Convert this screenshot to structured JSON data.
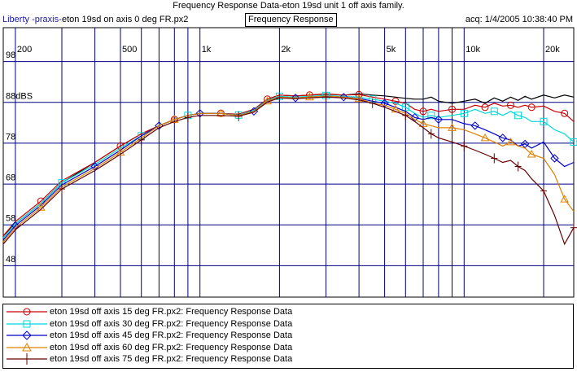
{
  "header": {
    "title": "Frequency Response Data-eton 19sd unit 1 off axis family.",
    "brand": "Liberty -praxis-",
    "subtitle": "eton 19sd on axis 0 deg FR.px2",
    "panel_title": "Frequency Response",
    "acquired": "acq: 1/4/2005 10:38:40 PM"
  },
  "colors": {
    "grid": "#000080",
    "legend_border": "#000000"
  },
  "chart_data": {
    "type": "line",
    "x_scale": "log",
    "xlim": [
      180,
      26000
    ],
    "ylim": [
      40,
      106
    ],
    "grid": true,
    "legend_placement": "bottom",
    "x_major_ticks": [
      {
        "value": 200,
        "label": "200"
      },
      {
        "value": 500,
        "label": "500"
      },
      {
        "value": 1000,
        "label": "1k"
      },
      {
        "value": 2000,
        "label": "2k"
      },
      {
        "value": 5000,
        "label": "5k"
      },
      {
        "value": 10000,
        "label": "10k"
      },
      {
        "value": 20000,
        "label": "20k"
      }
    ],
    "x_minor_ticks": [
      300,
      400,
      600,
      700,
      800,
      900,
      3000,
      4000,
      6000,
      7000,
      8000,
      9000
    ],
    "y_ticks": [
      {
        "value": 98,
        "label": "98"
      },
      {
        "value": 88,
        "label": "88dBS"
      },
      {
        "value": 78,
        "label": "78"
      },
      {
        "value": 68,
        "label": "68"
      },
      {
        "value": 58,
        "label": "58"
      },
      {
        "value": 48,
        "label": "48"
      }
    ],
    "series": [
      {
        "name": "eton 19sd on axis 0 deg FR.px2",
        "color": "#000000",
        "marker": "none",
        "x": [
          180,
          200,
          250,
          300,
          400,
          500,
          600,
          700,
          800,
          900,
          1000,
          1200,
          1400,
          1600,
          1800,
          2000,
          2300,
          2600,
          3000,
          3500,
          4000,
          4500,
          5000,
          5500,
          6000,
          6500,
          7000,
          7500,
          8000,
          9000,
          10000,
          11000,
          12000,
          13000,
          14000,
          15000,
          16000,
          17000,
          18000,
          20000,
          22000,
          24000,
          26000
        ],
        "y": [
          55,
          58,
          63,
          68,
          73,
          77,
          80,
          82,
          83.5,
          84.5,
          85,
          85,
          84.8,
          86,
          88.5,
          89.5,
          89.3,
          89.5,
          89.7,
          89.5,
          89.8,
          89.5,
          89.3,
          89,
          88.7,
          88.5,
          88.5,
          89,
          88,
          87.5,
          88,
          88.5,
          87.5,
          88.8,
          88,
          89,
          88.2,
          89.2,
          88.5,
          89.5,
          88.8,
          89.5,
          89
        ]
      },
      {
        "name": "eton 19sd off axis 15 deg FR.px2:  Frequency Response Data",
        "color": "#cc0000",
        "marker": "circle",
        "x": [
          180,
          200,
          250,
          300,
          400,
          500,
          600,
          700,
          800,
          900,
          1000,
          1200,
          1400,
          1600,
          1800,
          2000,
          2300,
          2600,
          3000,
          3500,
          4000,
          4500,
          5000,
          5500,
          6000,
          6500,
          7000,
          7500,
          8000,
          9000,
          10000,
          11000,
          12000,
          13000,
          14000,
          15000,
          16000,
          17000,
          18000,
          20000,
          22000,
          24000,
          26000
        ],
        "y": [
          55,
          58.5,
          63.5,
          68.5,
          73,
          77,
          80,
          82,
          83.5,
          84.5,
          85,
          85,
          84.8,
          86,
          88.5,
          89.5,
          89.3,
          89.5,
          89.8,
          89.5,
          89.6,
          89,
          88.5,
          88,
          87.5,
          86,
          85.5,
          86,
          85.5,
          86,
          86,
          87,
          86.5,
          87.5,
          86.8,
          87,
          86.5,
          87,
          86.5,
          86.8,
          85.5,
          85,
          83
        ]
      },
      {
        "name": "eton 19sd off axis 30 deg FR.px2:  Frequency Response Data",
        "color": "#00d8d8",
        "marker": "square",
        "x": [
          180,
          200,
          250,
          300,
          400,
          500,
          600,
          700,
          800,
          900,
          1000,
          1200,
          1400,
          1600,
          1800,
          2000,
          2300,
          2600,
          3000,
          3500,
          4000,
          4500,
          5000,
          5500,
          6000,
          6500,
          7000,
          7500,
          8000,
          9000,
          10000,
          11000,
          12000,
          13000,
          14000,
          15000,
          16000,
          17000,
          18000,
          20000,
          22000,
          24000,
          26000
        ],
        "y": [
          54.5,
          58,
          63,
          68,
          72.5,
          76.5,
          79.5,
          82,
          83.5,
          84.5,
          85,
          85,
          84.6,
          85.8,
          88.2,
          89.2,
          89,
          89.2,
          89.4,
          89.2,
          89,
          88.5,
          88,
          87.5,
          86.5,
          85,
          84,
          84.5,
          84,
          84.5,
          85,
          86,
          85,
          85.5,
          84.5,
          85.5,
          84.5,
          84,
          83,
          83,
          81,
          80,
          78
        ]
      },
      {
        "name": "eton 19sd off axis 45 deg FR.px2:  Frequency Response Data",
        "color": "#0000cc",
        "marker": "diamond",
        "x": [
          180,
          200,
          250,
          300,
          400,
          500,
          600,
          700,
          800,
          900,
          1000,
          1200,
          1400,
          1600,
          1800,
          2000,
          2300,
          2600,
          3000,
          3500,
          4000,
          4500,
          5000,
          5500,
          6000,
          6500,
          7000,
          7500,
          8000,
          9000,
          10000,
          11000,
          12000,
          13000,
          14000,
          15000,
          16000,
          17000,
          18000,
          20000,
          22000,
          24000,
          26000
        ],
        "y": [
          54,
          57.5,
          62.5,
          67.5,
          72,
          76,
          79.5,
          82,
          83.5,
          84.5,
          85,
          85,
          84.5,
          85.5,
          88,
          89,
          88.8,
          89,
          89.2,
          89,
          88.7,
          88,
          87.5,
          86.5,
          85.5,
          84,
          83.5,
          84,
          83.5,
          83.5,
          82.5,
          82,
          81,
          80,
          79,
          78.5,
          77,
          77.5,
          76.5,
          78,
          74,
          72,
          73
        ]
      },
      {
        "name": "eton 19sd off axis 60 deg FR.px2:  Frequency Response Data",
        "color": "#e08000",
        "marker": "triangle",
        "x": [
          180,
          200,
          250,
          300,
          400,
          500,
          600,
          700,
          800,
          900,
          1000,
          1200,
          1400,
          1600,
          1800,
          2000,
          2300,
          2600,
          3000,
          3500,
          4000,
          4500,
          5000,
          5500,
          6000,
          6500,
          7000,
          7500,
          8000,
          9000,
          10000,
          11000,
          12000,
          13000,
          14000,
          15000,
          16000,
          17000,
          18000,
          20000,
          22000,
          24000,
          26000
        ],
        "y": [
          53.5,
          57,
          62,
          67,
          71.5,
          75.5,
          79,
          82,
          83.5,
          84.5,
          85,
          85,
          84.5,
          85.5,
          88,
          89,
          88.8,
          89,
          89.3,
          89,
          88.6,
          87.5,
          87,
          86,
          85,
          83.5,
          82.5,
          82,
          81.5,
          81.5,
          81,
          80,
          79,
          78,
          77,
          78,
          77,
          76.5,
          75,
          74,
          70,
          64,
          61
        ]
      },
      {
        "name": "eton 19sd off axis 75 deg FR.px2:  Frequency Response Data",
        "color": "#660000",
        "marker": "cross",
        "x": [
          180,
          200,
          250,
          300,
          400,
          500,
          600,
          700,
          800,
          900,
          1000,
          1200,
          1400,
          1600,
          1800,
          2000,
          2300,
          2600,
          3000,
          3500,
          4000,
          4500,
          5000,
          5500,
          6000,
          6500,
          7000,
          7500,
          8000,
          9000,
          10000,
          11000,
          12000,
          13000,
          14000,
          15000,
          16000,
          17000,
          18000,
          20000,
          22000,
          24000,
          26000
        ],
        "y": [
          53,
          56.5,
          61.5,
          66.5,
          71,
          75,
          78.5,
          81.5,
          83,
          84,
          84.5,
          84.5,
          84.3,
          85.3,
          87.8,
          88.8,
          88.6,
          88.8,
          89,
          88.8,
          88.3,
          87.5,
          86.5,
          85.5,
          84.5,
          83,
          81.5,
          80,
          79,
          78,
          77,
          76,
          75,
          74,
          73,
          73.5,
          72,
          71,
          69,
          66,
          60,
          53,
          57
        ]
      }
    ]
  }
}
